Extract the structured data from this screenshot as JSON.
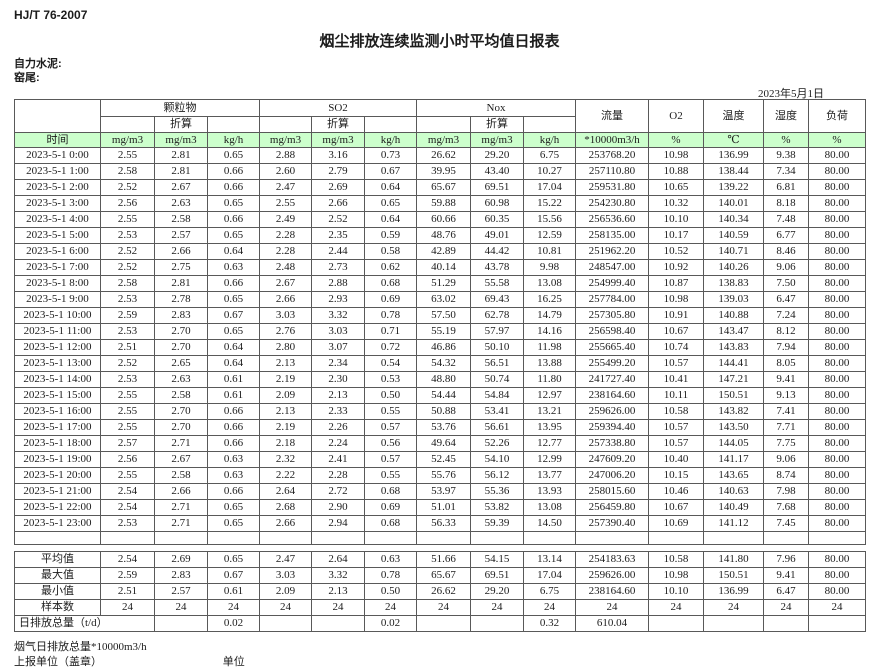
{
  "page": {
    "standard_no": "HJ/T 76-2007",
    "title": "烟尘排放连续监测小时平均值日报表",
    "company": "自力水泥:",
    "location": "窑尾:",
    "date": "2023年5月1日"
  },
  "table": {
    "time_header": "时间",
    "converted_label": "折算",
    "groups": [
      "颗粒物",
      "SO2",
      "Nox"
    ],
    "scalar_headers": [
      "流量",
      "O2",
      "温度",
      "湿度",
      "负荷"
    ],
    "units": [
      "mg/m3",
      "mg/m3",
      "kg/h",
      "mg/m3",
      "mg/m3",
      "kg/h",
      "mg/m3",
      "mg/m3",
      "kg/h",
      "*10000m3/h",
      "%",
      "℃",
      "%",
      "%"
    ],
    "rows": [
      {
        "time": "2023-5-1 0:00",
        "values": [
          "2.55",
          "2.81",
          "0.65",
          "2.88",
          "3.16",
          "0.73",
          "26.62",
          "29.20",
          "6.75",
          "253768.20",
          "10.98",
          "136.99",
          "9.38",
          "80.00"
        ]
      },
      {
        "time": "2023-5-1 1:00",
        "values": [
          "2.58",
          "2.81",
          "0.66",
          "2.60",
          "2.79",
          "0.67",
          "39.95",
          "43.40",
          "10.27",
          "257110.80",
          "10.88",
          "138.44",
          "7.34",
          "80.00"
        ]
      },
      {
        "time": "2023-5-1 2:00",
        "values": [
          "2.52",
          "2.67",
          "0.66",
          "2.47",
          "2.69",
          "0.64",
          "65.67",
          "69.51",
          "17.04",
          "259531.80",
          "10.65",
          "139.22",
          "6.81",
          "80.00"
        ]
      },
      {
        "time": "2023-5-1 3:00",
        "values": [
          "2.56",
          "2.63",
          "0.65",
          "2.55",
          "2.66",
          "0.65",
          "59.88",
          "60.98",
          "15.22",
          "254230.80",
          "10.32",
          "140.01",
          "8.18",
          "80.00"
        ]
      },
      {
        "time": "2023-5-1 4:00",
        "values": [
          "2.55",
          "2.58",
          "0.66",
          "2.49",
          "2.52",
          "0.64",
          "60.66",
          "60.35",
          "15.56",
          "256536.60",
          "10.10",
          "140.34",
          "7.48",
          "80.00"
        ]
      },
      {
        "time": "2023-5-1 5:00",
        "values": [
          "2.53",
          "2.57",
          "0.65",
          "2.28",
          "2.35",
          "0.59",
          "48.76",
          "49.01",
          "12.59",
          "258135.00",
          "10.17",
          "140.59",
          "6.77",
          "80.00"
        ]
      },
      {
        "time": "2023-5-1 6:00",
        "values": [
          "2.52",
          "2.66",
          "0.64",
          "2.28",
          "2.44",
          "0.58",
          "42.89",
          "44.42",
          "10.81",
          "251962.20",
          "10.52",
          "140.71",
          "8.46",
          "80.00"
        ]
      },
      {
        "time": "2023-5-1 7:00",
        "values": [
          "2.52",
          "2.75",
          "0.63",
          "2.48",
          "2.73",
          "0.62",
          "40.14",
          "43.78",
          "9.98",
          "248547.00",
          "10.92",
          "140.26",
          "9.06",
          "80.00"
        ]
      },
      {
        "time": "2023-5-1 8:00",
        "values": [
          "2.58",
          "2.81",
          "0.66",
          "2.67",
          "2.88",
          "0.68",
          "51.29",
          "55.58",
          "13.08",
          "254999.40",
          "10.87",
          "138.83",
          "7.50",
          "80.00"
        ]
      },
      {
        "time": "2023-5-1 9:00",
        "values": [
          "2.53",
          "2.78",
          "0.65",
          "2.66",
          "2.93",
          "0.69",
          "63.02",
          "69.43",
          "16.25",
          "257784.00",
          "10.98",
          "139.03",
          "6.47",
          "80.00"
        ]
      },
      {
        "time": "2023-5-1 10:00",
        "values": [
          "2.59",
          "2.83",
          "0.67",
          "3.03",
          "3.32",
          "0.78",
          "57.50",
          "62.78",
          "14.79",
          "257305.80",
          "10.91",
          "140.88",
          "7.24",
          "80.00"
        ]
      },
      {
        "time": "2023-5-1 11:00",
        "values": [
          "2.53",
          "2.70",
          "0.65",
          "2.76",
          "3.03",
          "0.71",
          "55.19",
          "57.97",
          "14.16",
          "256598.40",
          "10.67",
          "143.47",
          "8.12",
          "80.00"
        ]
      },
      {
        "time": "2023-5-1 12:00",
        "values": [
          "2.51",
          "2.70",
          "0.64",
          "2.80",
          "3.07",
          "0.72",
          "46.86",
          "50.10",
          "11.98",
          "255665.40",
          "10.74",
          "143.83",
          "7.94",
          "80.00"
        ]
      },
      {
        "time": "2023-5-1 13:00",
        "values": [
          "2.52",
          "2.65",
          "0.64",
          "2.13",
          "2.34",
          "0.54",
          "54.32",
          "56.51",
          "13.88",
          "255499.20",
          "10.57",
          "144.41",
          "8.05",
          "80.00"
        ]
      },
      {
        "time": "2023-5-1 14:00",
        "values": [
          "2.53",
          "2.63",
          "0.61",
          "2.19",
          "2.30",
          "0.53",
          "48.80",
          "50.74",
          "11.80",
          "241727.40",
          "10.41",
          "147.21",
          "9.41",
          "80.00"
        ]
      },
      {
        "time": "2023-5-1 15:00",
        "values": [
          "2.55",
          "2.58",
          "0.61",
          "2.09",
          "2.13",
          "0.50",
          "54.44",
          "54.84",
          "12.97",
          "238164.60",
          "10.11",
          "150.51",
          "9.13",
          "80.00"
        ]
      },
      {
        "time": "2023-5-1 16:00",
        "values": [
          "2.55",
          "2.70",
          "0.66",
          "2.13",
          "2.33",
          "0.55",
          "50.88",
          "53.41",
          "13.21",
          "259626.00",
          "10.58",
          "143.82",
          "7.41",
          "80.00"
        ]
      },
      {
        "time": "2023-5-1 17:00",
        "values": [
          "2.55",
          "2.70",
          "0.66",
          "2.19",
          "2.26",
          "0.57",
          "53.76",
          "56.61",
          "13.95",
          "259394.40",
          "10.57",
          "143.50",
          "7.71",
          "80.00"
        ]
      },
      {
        "time": "2023-5-1 18:00",
        "values": [
          "2.57",
          "2.71",
          "0.66",
          "2.18",
          "2.24",
          "0.56",
          "49.64",
          "52.26",
          "12.77",
          "257338.80",
          "10.57",
          "144.05",
          "7.75",
          "80.00"
        ]
      },
      {
        "time": "2023-5-1 19:00",
        "values": [
          "2.56",
          "2.67",
          "0.63",
          "2.32",
          "2.41",
          "0.57",
          "52.45",
          "54.10",
          "12.99",
          "247609.20",
          "10.40",
          "141.17",
          "9.06",
          "80.00"
        ]
      },
      {
        "time": "2023-5-1 20:00",
        "values": [
          "2.55",
          "2.58",
          "0.63",
          "2.22",
          "2.28",
          "0.55",
          "55.76",
          "56.12",
          "13.77",
          "247006.20",
          "10.15",
          "143.65",
          "8.74",
          "80.00"
        ]
      },
      {
        "time": "2023-5-1 21:00",
        "values": [
          "2.54",
          "2.66",
          "0.66",
          "2.64",
          "2.72",
          "0.68",
          "53.97",
          "55.36",
          "13.93",
          "258015.60",
          "10.46",
          "140.63",
          "7.98",
          "80.00"
        ]
      },
      {
        "time": "2023-5-1 22:00",
        "values": [
          "2.54",
          "2.71",
          "0.65",
          "2.68",
          "2.90",
          "0.69",
          "51.01",
          "53.82",
          "13.08",
          "256459.80",
          "10.67",
          "140.49",
          "7.68",
          "80.00"
        ]
      },
      {
        "time": "2023-5-1 23:00",
        "values": [
          "2.53",
          "2.71",
          "0.65",
          "2.66",
          "2.94",
          "0.68",
          "56.33",
          "59.39",
          "14.50",
          "257390.40",
          "10.69",
          "141.12",
          "7.45",
          "80.00"
        ]
      }
    ],
    "summary_rows": [
      {
        "label": "平均值",
        "values": [
          "2.54",
          "2.69",
          "0.65",
          "2.47",
          "2.64",
          "0.63",
          "51.66",
          "54.15",
          "13.14",
          "254183.63",
          "10.58",
          "141.80",
          "7.96",
          "80.00"
        ]
      },
      {
        "label": "最大值",
        "values": [
          "2.59",
          "2.83",
          "0.67",
          "3.03",
          "3.32",
          "0.78",
          "65.67",
          "69.51",
          "17.04",
          "259626.00",
          "10.98",
          "150.51",
          "9.41",
          "80.00"
        ]
      },
      {
        "label": "最小值",
        "values": [
          "2.51",
          "2.57",
          "0.61",
          "2.09",
          "2.13",
          "0.50",
          "26.62",
          "29.20",
          "6.75",
          "238164.60",
          "10.10",
          "136.99",
          "6.47",
          "80.00"
        ]
      },
      {
        "label": "样本数",
        "values": [
          "24",
          "24",
          "24",
          "24",
          "24",
          "24",
          "24",
          "24",
          "24",
          "24",
          "24",
          "24",
          "24",
          "24"
        ]
      },
      {
        "label": "日排放总量（t/d）",
        "label_colspan": 2,
        "values": [
          "",
          "0.02",
          "",
          "",
          "0.02",
          "",
          "",
          "0.32",
          "610.04",
          "",
          "",
          "",
          ""
        ]
      }
    ]
  },
  "footer": {
    "note": "烟气日排放总量*10000m3/h",
    "report_unit_label": "上报单位（盖章）",
    "unit_label": "单位"
  },
  "colors": {
    "header_green": "#ccffcc",
    "border": "#595959"
  }
}
